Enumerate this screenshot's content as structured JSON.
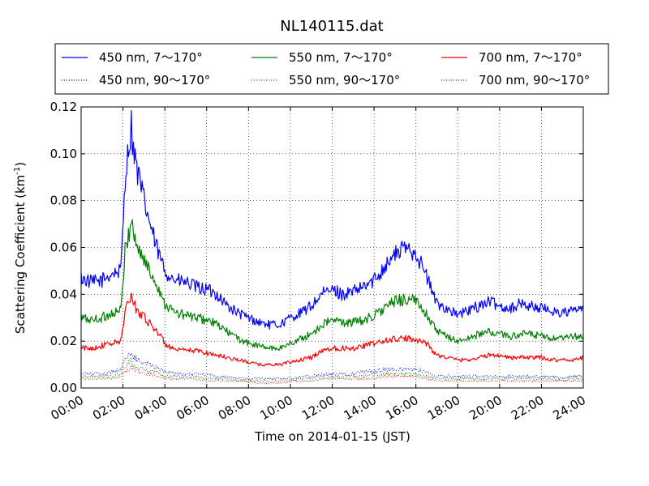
{
  "chart_data": {
    "type": "line",
    "title": "NL140115.dat",
    "xlabel": "Time on 2014-01-15 (JST)",
    "ylabel": "Scattering Coefficient (km",
    "ylabel_exponent": "-1",
    "ylabel_close": ")",
    "x_unit": "hour",
    "xlim": [
      0,
      24
    ],
    "ylim": [
      0,
      0.12
    ],
    "x_ticks": [
      0,
      2,
      4,
      6,
      8,
      10,
      12,
      14,
      16,
      18,
      20,
      22,
      24
    ],
    "x_tick_labels": [
      "00:00",
      "02:00",
      "04:00",
      "06:00",
      "08:00",
      "10:00",
      "12:00",
      "14:00",
      "16:00",
      "18:00",
      "20:00",
      "22:00",
      "24:00"
    ],
    "y_ticks": [
      0,
      0.02,
      0.04,
      0.06,
      0.08,
      0.1,
      0.12
    ],
    "y_tick_labels": [
      "0.00",
      "0.02",
      "0.04",
      "0.06",
      "0.08",
      "0.10",
      "0.12"
    ],
    "grid": true,
    "legend_position": "top, above plot",
    "x": [
      0,
      0.5,
      1,
      1.5,
      1.9,
      2.1,
      2.3,
      2.4,
      2.5,
      2.7,
      3,
      3.3,
      3.6,
      4,
      4.5,
      5,
      5.5,
      6,
      6.5,
      7,
      7.5,
      8,
      8.5,
      9,
      9.5,
      10,
      10.5,
      11,
      11.5,
      12,
      12.5,
      13,
      13.5,
      14,
      14.5,
      15,
      15.5,
      16,
      16.5,
      17,
      17.5,
      18,
      18.5,
      19,
      19.5,
      20,
      20.5,
      21,
      21.5,
      22,
      22.5,
      23,
      23.5,
      24
    ],
    "series": [
      {
        "name": "450 nm, 7～170°",
        "color": "#0000ff",
        "style": "solid",
        "values": [
          0.047,
          0.045,
          0.046,
          0.049,
          0.05,
          0.09,
          0.105,
          0.112,
          0.102,
          0.092,
          0.08,
          0.07,
          0.06,
          0.05,
          0.046,
          0.045,
          0.043,
          0.042,
          0.04,
          0.035,
          0.032,
          0.03,
          0.028,
          0.027,
          0.027,
          0.03,
          0.032,
          0.035,
          0.04,
          0.042,
          0.04,
          0.041,
          0.043,
          0.046,
          0.052,
          0.057,
          0.06,
          0.058,
          0.048,
          0.036,
          0.034,
          0.031,
          0.033,
          0.035,
          0.037,
          0.035,
          0.034,
          0.036,
          0.035,
          0.034,
          0.033,
          0.032,
          0.033,
          0.034
        ]
      },
      {
        "name": "550 nm, 7～170°",
        "color": "#008000",
        "style": "solid",
        "values": [
          0.03,
          0.029,
          0.03,
          0.032,
          0.033,
          0.058,
          0.067,
          0.073,
          0.066,
          0.06,
          0.055,
          0.049,
          0.045,
          0.036,
          0.032,
          0.031,
          0.03,
          0.029,
          0.027,
          0.024,
          0.021,
          0.019,
          0.018,
          0.017,
          0.017,
          0.019,
          0.021,
          0.023,
          0.027,
          0.029,
          0.028,
          0.028,
          0.029,
          0.031,
          0.034,
          0.037,
          0.038,
          0.037,
          0.032,
          0.024,
          0.022,
          0.02,
          0.021,
          0.023,
          0.024,
          0.023,
          0.022,
          0.023,
          0.023,
          0.022,
          0.021,
          0.021,
          0.022,
          0.022
        ]
      },
      {
        "name": "700 nm, 7～170°",
        "color": "#ff0000",
        "style": "solid",
        "values": [
          0.017,
          0.017,
          0.018,
          0.019,
          0.02,
          0.033,
          0.037,
          0.04,
          0.036,
          0.033,
          0.031,
          0.027,
          0.025,
          0.019,
          0.016,
          0.016,
          0.016,
          0.015,
          0.014,
          0.013,
          0.012,
          0.011,
          0.01,
          0.01,
          0.01,
          0.011,
          0.012,
          0.013,
          0.016,
          0.017,
          0.017,
          0.017,
          0.018,
          0.019,
          0.02,
          0.021,
          0.021,
          0.021,
          0.019,
          0.014,
          0.013,
          0.012,
          0.012,
          0.013,
          0.014,
          0.014,
          0.013,
          0.013,
          0.013,
          0.013,
          0.012,
          0.012,
          0.012,
          0.013
        ]
      },
      {
        "name": "450 nm, 90～170°",
        "color": "#0000ff",
        "style": "dotted",
        "values": [
          0.006,
          0.006,
          0.006,
          0.007,
          0.008,
          0.012,
          0.014,
          0.015,
          0.013,
          0.012,
          0.011,
          0.01,
          0.009,
          0.007,
          0.006,
          0.006,
          0.006,
          0.006,
          0.005,
          0.005,
          0.004,
          0.004,
          0.004,
          0.004,
          0.004,
          0.004,
          0.005,
          0.005,
          0.006,
          0.006,
          0.006,
          0.006,
          0.007,
          0.007,
          0.008,
          0.008,
          0.008,
          0.008,
          0.007,
          0.005,
          0.005,
          0.005,
          0.005,
          0.005,
          0.005,
          0.005,
          0.005,
          0.005,
          0.005,
          0.005,
          0.005,
          0.004,
          0.005,
          0.005
        ]
      },
      {
        "name": "550 nm, 90～170°",
        "color": "#008000",
        "style": "dotted",
        "values": [
          0.005,
          0.005,
          0.005,
          0.005,
          0.006,
          0.009,
          0.011,
          0.012,
          0.01,
          0.009,
          0.008,
          0.007,
          0.007,
          0.005,
          0.005,
          0.005,
          0.005,
          0.004,
          0.004,
          0.004,
          0.003,
          0.003,
          0.003,
          0.003,
          0.003,
          0.003,
          0.004,
          0.004,
          0.005,
          0.005,
          0.005,
          0.005,
          0.005,
          0.006,
          0.006,
          0.006,
          0.006,
          0.006,
          0.005,
          0.004,
          0.004,
          0.004,
          0.004,
          0.004,
          0.004,
          0.004,
          0.004,
          0.004,
          0.004,
          0.004,
          0.004,
          0.003,
          0.004,
          0.004
        ]
      },
      {
        "name": "700 nm, 90～170°",
        "color": "#ff0000",
        "style": "dotted",
        "values": [
          0.004,
          0.004,
          0.004,
          0.004,
          0.005,
          0.007,
          0.008,
          0.009,
          0.008,
          0.007,
          0.006,
          0.006,
          0.005,
          0.004,
          0.004,
          0.004,
          0.004,
          0.003,
          0.003,
          0.003,
          0.003,
          0.003,
          0.002,
          0.002,
          0.002,
          0.003,
          0.003,
          0.003,
          0.004,
          0.004,
          0.004,
          0.004,
          0.004,
          0.004,
          0.005,
          0.005,
          0.005,
          0.005,
          0.004,
          0.003,
          0.003,
          0.003,
          0.003,
          0.003,
          0.003,
          0.003,
          0.003,
          0.003,
          0.003,
          0.003,
          0.003,
          0.003,
          0.003,
          0.003
        ]
      }
    ]
  }
}
